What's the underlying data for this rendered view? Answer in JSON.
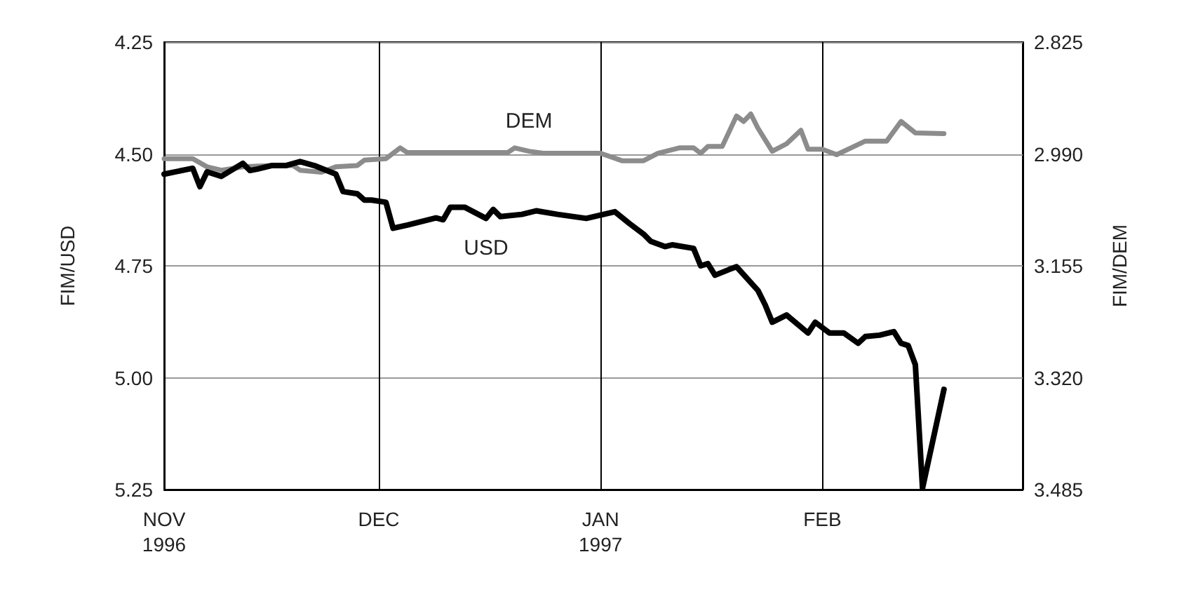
{
  "chart_data": {
    "type": "line",
    "xlabel": null,
    "ylabel": "FIM/USD",
    "y2label": "FIM/DEM",
    "xlim": [
      "1996-11-01",
      "1997-03-01"
    ],
    "xticks": [
      {
        "value": "1996-11-01",
        "label": "NOV\n1996"
      },
      {
        "value": "1996-12-01",
        "label": "DEC"
      },
      {
        "value": "1997-01-01",
        "label": "JAN\n1997"
      },
      {
        "value": "1997-02-01",
        "label": "FEB"
      }
    ],
    "ylim": [
      5.25,
      4.25
    ],
    "yticks": [
      {
        "value": 4.25,
        "label": "4.25"
      },
      {
        "value": 4.5,
        "label": "4.50"
      },
      {
        "value": 4.75,
        "label": "4.75"
      },
      {
        "value": 5.0,
        "label": "5.00"
      },
      {
        "value": 5.25,
        "label": "5.25"
      }
    ],
    "y2lim": [
      3.485,
      2.825
    ],
    "y2ticks": [
      {
        "value": 2.825,
        "label": "2.825"
      },
      {
        "value": 2.99,
        "label": "2.990"
      },
      {
        "value": 3.155,
        "label": "3.155"
      },
      {
        "value": 3.32,
        "label": "3.320"
      },
      {
        "value": 3.485,
        "label": "3.485"
      }
    ],
    "grid": true,
    "marker": "none",
    "line_style": "solid",
    "series": [
      {
        "name": "USD",
        "color": "#000000",
        "x": [
          "1996-11-01",
          "1996-11-05",
          "1996-11-06",
          "1996-11-07",
          "1996-11-09",
          "1996-11-12",
          "1996-11-13",
          "1996-11-14",
          "1996-11-16",
          "1996-11-18",
          "1996-11-20",
          "1996-11-22",
          "1996-11-25",
          "1996-11-26",
          "1996-11-28",
          "1996-11-29",
          "1996-11-30",
          "1996-12-02",
          "1996-12-03",
          "1996-12-05",
          "1996-12-09",
          "1996-12-10",
          "1996-12-11",
          "1996-12-13",
          "1996-12-16",
          "1996-12-17",
          "1996-12-18",
          "1996-12-21",
          "1996-12-23",
          "1996-12-26",
          "1996-12-30",
          "1997-01-03",
          "1997-01-05",
          "1997-01-07",
          "1997-01-08",
          "1997-01-10",
          "1997-01-11",
          "1997-01-14",
          "1997-01-15",
          "1997-01-16",
          "1997-01-17",
          "1997-01-19",
          "1997-01-20",
          "1997-01-23",
          "1997-01-24",
          "1997-01-25",
          "1997-01-27",
          "1997-01-30",
          "1997-01-31",
          "1997-02-02",
          "1997-02-04",
          "1997-02-06",
          "1997-02-07",
          "1997-02-09",
          "1997-02-11",
          "1997-02-12",
          "1997-02-13",
          "1997-02-14",
          "1997-02-15",
          "1997-02-18"
        ],
        "values": [
          4.545,
          4.532,
          4.573,
          4.54,
          4.55,
          4.521,
          4.537,
          4.534,
          4.526,
          4.526,
          4.517,
          4.526,
          4.545,
          4.584,
          4.589,
          4.603,
          4.603,
          4.608,
          4.666,
          4.659,
          4.643,
          4.647,
          4.619,
          4.619,
          4.644,
          4.624,
          4.64,
          4.635,
          4.627,
          4.635,
          4.644,
          4.629,
          4.655,
          4.679,
          4.695,
          4.707,
          4.703,
          4.711,
          4.75,
          4.745,
          4.771,
          4.758,
          4.752,
          4.805,
          4.837,
          4.876,
          4.86,
          4.9,
          4.876,
          4.9,
          4.9,
          4.923,
          4.908,
          4.905,
          4.897,
          4.923,
          4.928,
          4.971,
          5.247,
          5.026
        ]
      },
      {
        "name": "DEM",
        "color": "#8c8c8c",
        "axis": "y2",
        "x": [
          "1996-11-01",
          "1996-11-05",
          "1996-11-07",
          "1996-11-09",
          "1996-11-12",
          "1996-11-16",
          "1996-11-19",
          "1996-11-20",
          "1996-11-23",
          "1996-11-25",
          "1996-11-28",
          "1996-11-29",
          "1996-12-02",
          "1996-12-04",
          "1996-12-05",
          "1996-12-11",
          "1996-12-19",
          "1996-12-20",
          "1996-12-22",
          "1996-12-24",
          "1997-01-01",
          "1997-01-04",
          "1997-01-07",
          "1997-01-09",
          "1997-01-12",
          "1997-01-14",
          "1997-01-15",
          "1997-01-16",
          "1997-01-18",
          "1997-01-20",
          "1997-01-21",
          "1997-01-22",
          "1997-01-23",
          "1997-01-25",
          "1997-01-27",
          "1997-01-29",
          "1997-01-30",
          "1997-02-01",
          "1997-02-03",
          "1997-02-05",
          "1997-02-07",
          "1997-02-10",
          "1997-02-12",
          "1997-02-14",
          "1997-02-18"
        ],
        "values": [
          2.997,
          2.997,
          3.009,
          3.014,
          3.009,
          3.007,
          3.007,
          3.014,
          3.017,
          3.009,
          3.007,
          2.999,
          2.997,
          2.981,
          2.988,
          2.988,
          2.988,
          2.981,
          2.986,
          2.989,
          2.989,
          3.0,
          3.0,
          2.989,
          2.981,
          2.981,
          2.989,
          2.979,
          2.979,
          2.934,
          2.942,
          2.931,
          2.952,
          2.986,
          2.975,
          2.955,
          2.983,
          2.983,
          2.991,
          2.981,
          2.971,
          2.971,
          2.942,
          2.959,
          2.96
        ]
      }
    ]
  }
}
